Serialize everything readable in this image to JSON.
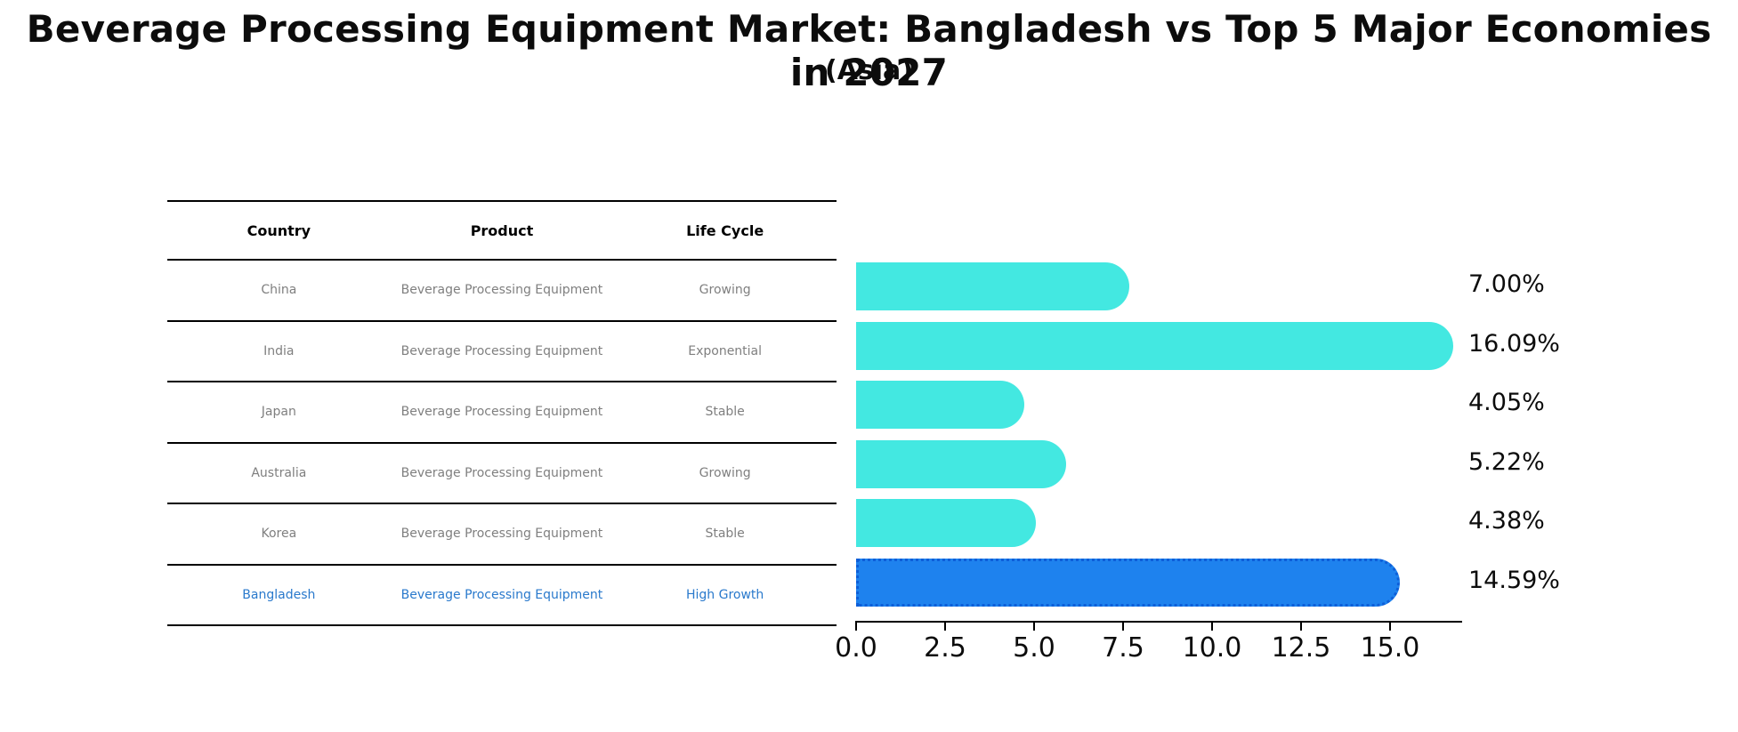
{
  "title": "Beverage Processing Equipment Market: Bangladesh vs Top 5 Major Economies in 2027",
  "subtitle": "(Asia)",
  "table": {
    "headers": [
      "Country",
      "Product",
      "Life Cycle"
    ],
    "rows": [
      {
        "country": "China",
        "product": "Beverage Processing Equipment",
        "life_cycle": "Growing",
        "highlight": false
      },
      {
        "country": "India",
        "product": "Beverage Processing Equipment",
        "life_cycle": "Exponential",
        "highlight": false
      },
      {
        "country": "Japan",
        "product": "Beverage Processing Equipment",
        "life_cycle": "Stable",
        "highlight": false
      },
      {
        "country": "Australia",
        "product": "Beverage Processing Equipment",
        "life_cycle": "Growing",
        "highlight": false
      },
      {
        "country": "Korea",
        "product": "Beverage Processing Equipment",
        "life_cycle": "Stable",
        "highlight": false
      },
      {
        "country": "Bangladesh",
        "product": "Beverage Processing Equipment",
        "life_cycle": "High Growth",
        "highlight": true
      }
    ]
  },
  "chart_data": {
    "type": "bar",
    "orientation": "horizontal",
    "categories": [
      "China",
      "India",
      "Japan",
      "Australia",
      "Korea",
      "Bangladesh"
    ],
    "values": [
      7.0,
      16.09,
      4.05,
      5.22,
      4.38,
      14.59
    ],
    "bar_labels": [
      "7.00%",
      "16.09%",
      "4.05%",
      "5.22%",
      "4.38%",
      "14.59%"
    ],
    "highlight_index": 5,
    "xticks": [
      "0.0",
      "2.5",
      "5.0",
      "7.5",
      "10.0",
      "12.5",
      "15.0"
    ],
    "xtick_values": [
      0,
      2.5,
      5,
      7.5,
      10,
      12.5,
      15
    ],
    "xlim": [
      0,
      17
    ],
    "grid": false,
    "legend": "none",
    "title": "Beverage Processing Equipment Market: Bangladesh vs Top 5 Major Economies in 2027 (Asia)",
    "xlabel": "",
    "ylabel": ""
  },
  "colors": {
    "bar_default": "#43E8E1",
    "bar_highlight": "#1E82EE",
    "bar_highlight_border": "#0D5ED8",
    "highlight_text": "#2979CC",
    "cell_text": "#7F7F7F",
    "line": "#000000"
  }
}
